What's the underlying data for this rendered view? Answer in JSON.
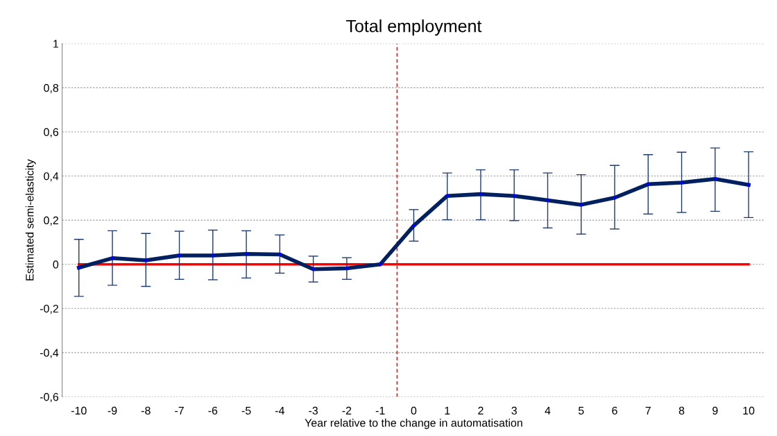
{
  "chart_data": {
    "type": "line",
    "title": "Total employment",
    "xlabel": "Year relative to the change in automatisation",
    "ylabel": "Estimated semi-elasticity",
    "x": [
      -10,
      -9,
      -8,
      -7,
      -6,
      -5,
      -4,
      -3,
      -2,
      -1,
      0,
      1,
      2,
      3,
      4,
      5,
      6,
      7,
      8,
      9,
      10
    ],
    "series": [
      {
        "color": "#002060",
        "values": [
          -0.015,
          0.028,
          0.018,
          0.04,
          0.04,
          0.047,
          0.045,
          -0.022,
          -0.018,
          0,
          0.175,
          0.31,
          0.318,
          0.31,
          0.29,
          0.27,
          0.302,
          0.363,
          0.37,
          0.387,
          0.36
        ],
        "errors": [
          [
            -0.145,
            0.113
          ],
          [
            -0.095,
            0.152
          ],
          [
            -0.1,
            0.14
          ],
          [
            -0.068,
            0.15
          ],
          [
            -0.07,
            0.155
          ],
          [
            -0.062,
            0.152
          ],
          [
            -0.04,
            0.133
          ],
          [
            -0.08,
            0.037
          ],
          [
            -0.068,
            0.03
          ],
          null,
          [
            0.105,
            0.248
          ],
          [
            0.202,
            0.414
          ],
          [
            0.202,
            0.428
          ],
          [
            0.198,
            0.428
          ],
          [
            0.165,
            0.414
          ],
          [
            0.137,
            0.406
          ],
          [
            0.16,
            0.448
          ],
          [
            0.228,
            0.497
          ],
          [
            0.235,
            0.508
          ],
          [
            0.24,
            0.527
          ],
          [
            0.212,
            0.51
          ]
        ]
      }
    ],
    "xlim": [
      -10.5,
      10.5
    ],
    "xticks": [
      -10,
      -9,
      -8,
      -7,
      -6,
      -5,
      -4,
      -3,
      -2,
      -1,
      0,
      1,
      2,
      3,
      4,
      5,
      6,
      7,
      8,
      9,
      10
    ],
    "ylim": [
      -0.6,
      1
    ],
    "yticks": [
      {
        "value": -0.6,
        "label": "-0,6"
      },
      {
        "value": -0.4,
        "label": "-0,4"
      },
      {
        "value": -0.2,
        "label": "-0,2"
      },
      0,
      {
        "value": 0.2,
        "label": "0,2"
      },
      {
        "value": 0.4,
        "label": "0,4"
      },
      {
        "value": 0.6,
        "label": "0,6"
      },
      {
        "value": 0.8,
        "label": "0,8"
      },
      1
    ],
    "ref_lines": [
      {
        "axis": "y",
        "value": 0,
        "color": "#ff0000",
        "line_style": "solid"
      },
      {
        "axis": "x",
        "value": -0.5,
        "color": "#c00000",
        "line_style": "dashed"
      }
    ],
    "grid": "y",
    "marker": "circle",
    "line_style": "solid",
    "legend": false
  }
}
